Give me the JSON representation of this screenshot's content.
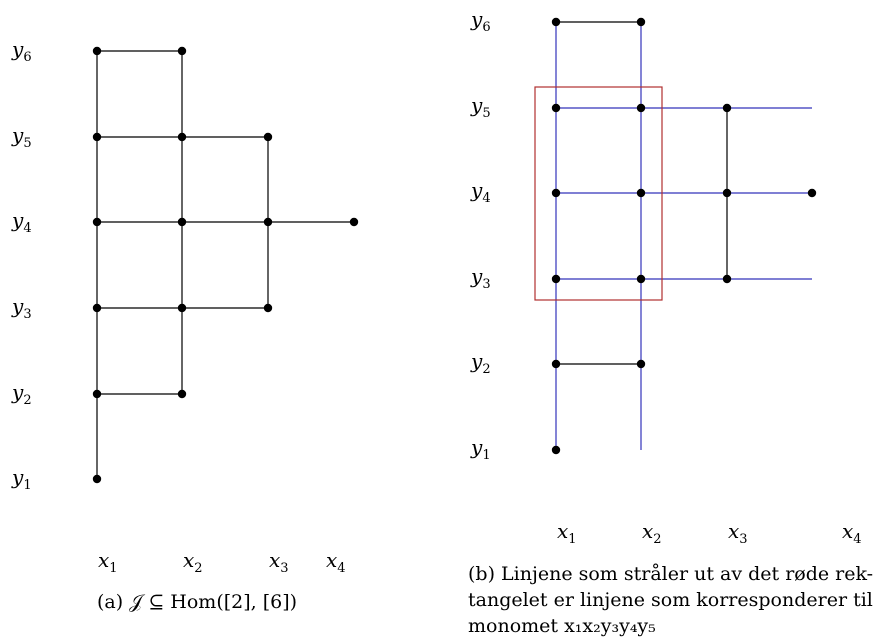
{
  "panel_a": {
    "y_labels": [
      {
        "base": "y",
        "sub": "6"
      },
      {
        "base": "y",
        "sub": "5"
      },
      {
        "base": "y",
        "sub": "4"
      },
      {
        "base": "y",
        "sub": "3"
      },
      {
        "base": "y",
        "sub": "2"
      },
      {
        "base": "y",
        "sub": "1"
      }
    ],
    "x_labels": [
      {
        "base": "x",
        "sub": "1"
      },
      {
        "base": "x",
        "sub": "2"
      },
      {
        "base": "x",
        "sub": "3"
      },
      {
        "base": "x",
        "sub": "4"
      }
    ],
    "caption": "(a) 𝒥 ⊆ Hom([2], [6])",
    "grid": {
      "x1": [
        1,
        2,
        3,
        4,
        5,
        6
      ],
      "x2": [
        2,
        3,
        4,
        5,
        6
      ],
      "x3": [
        3,
        4,
        5
      ],
      "x4": [
        4
      ]
    }
  },
  "panel_b": {
    "y_labels": [
      {
        "base": "y",
        "sub": "6"
      },
      {
        "base": "y",
        "sub": "5"
      },
      {
        "base": "y",
        "sub": "4"
      },
      {
        "base": "y",
        "sub": "3"
      },
      {
        "base": "y",
        "sub": "2"
      },
      {
        "base": "y",
        "sub": "1"
      }
    ],
    "x_labels": [
      {
        "base": "x",
        "sub": "1"
      },
      {
        "base": "x",
        "sub": "2"
      },
      {
        "base": "x",
        "sub": "3"
      },
      {
        "base": "x",
        "sub": "4"
      }
    ],
    "caption_lines": [
      "(b) Linjene som stråler ut av det røde rek-",
      "tangelet er linjene som korresponderer til",
      "monomet x₁x₂y₃y₄y₅"
    ],
    "highlight_monomial": "x₁x₂y₃y₄y₅",
    "colors": {
      "ray": "#3333bb",
      "rect": "#b03030",
      "edge": "#000000"
    }
  }
}
